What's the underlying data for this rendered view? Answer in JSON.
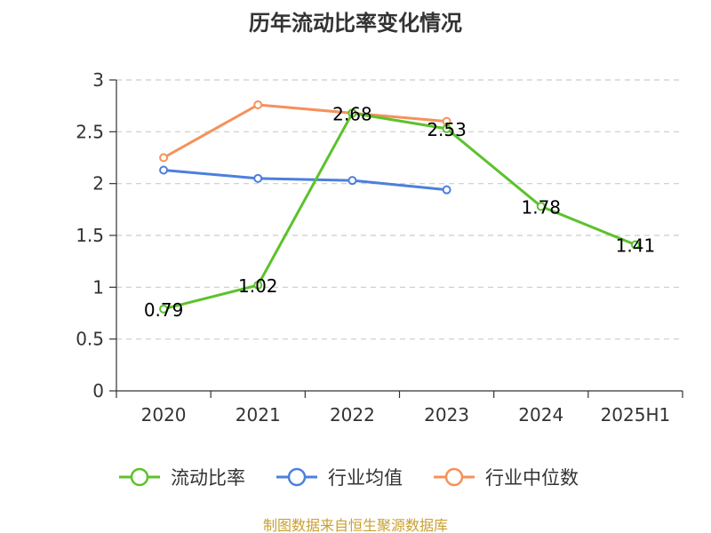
{
  "chart_data": {
    "type": "line",
    "title": "历年流动比率变化情况",
    "categories": [
      "2020",
      "2021",
      "2022",
      "2023",
      "2024",
      "2025H1"
    ],
    "ylim": [
      0,
      3
    ],
    "yticks": [
      "0",
      "0.5",
      "1",
      "1.5",
      "2",
      "2.5",
      "3"
    ],
    "grid": true,
    "legend_position": "bottom",
    "series": [
      {
        "name": "流动比率",
        "color": "#5cc22c",
        "values": [
          0.79,
          1.02,
          2.68,
          2.53,
          1.78,
          1.41
        ],
        "labels": [
          "0.79",
          "1.02",
          "2.68",
          "2.53",
          "1.78",
          "1.41"
        ]
      },
      {
        "name": "行业均值",
        "color": "#4d7fdc",
        "values": [
          2.13,
          2.05,
          2.03,
          1.94,
          null,
          null
        ]
      },
      {
        "name": "行业中位数",
        "color": "#f5915a",
        "values": [
          2.25,
          2.76,
          2.68,
          2.6,
          null,
          null
        ]
      }
    ]
  },
  "source": {
    "text": "制图数据来自恒生聚源数据库",
    "color": "#c8a032"
  }
}
